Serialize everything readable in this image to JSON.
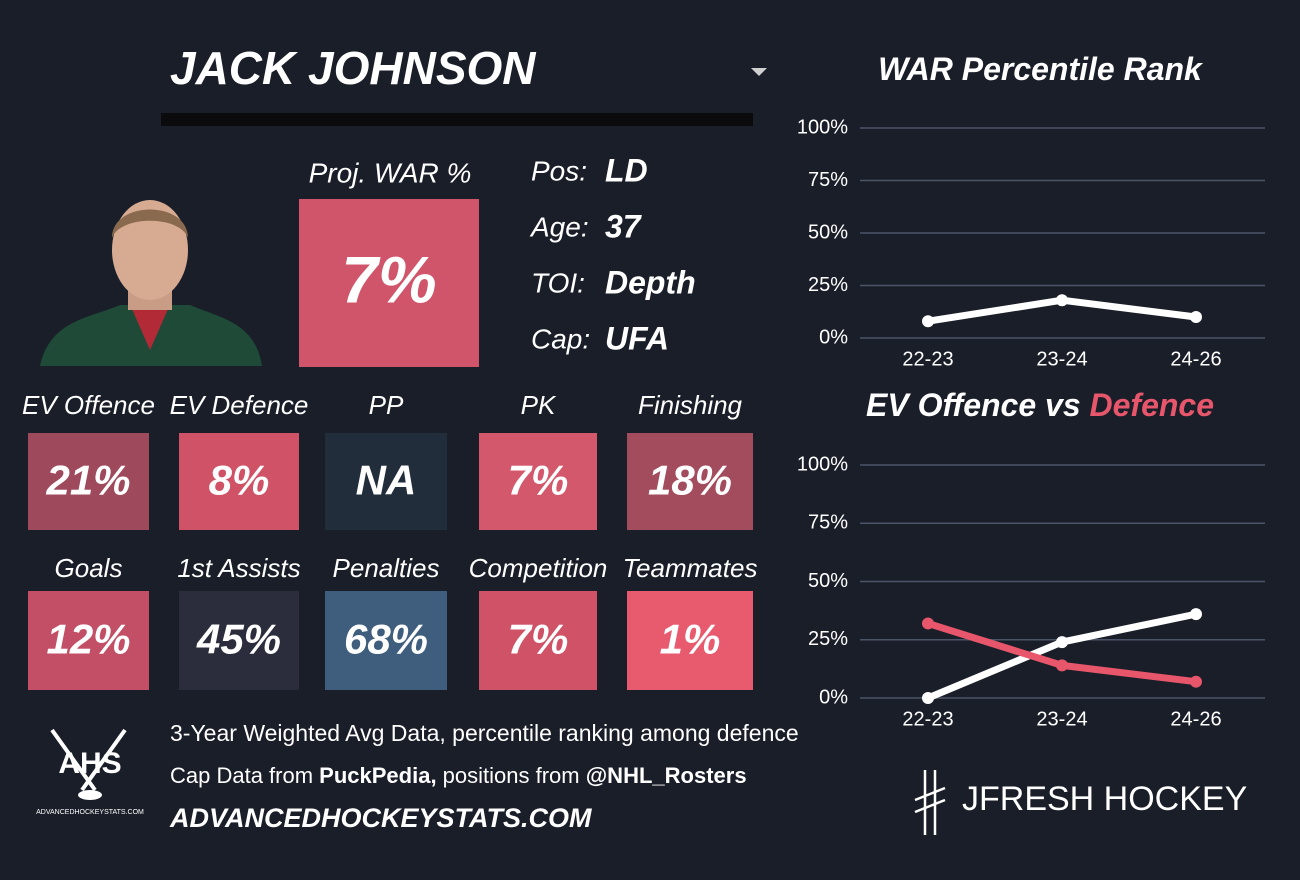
{
  "header": {
    "name": "JACK JOHNSON"
  },
  "projection": {
    "label": "Proj. WAR %",
    "value": "7%",
    "color": "#d0556a"
  },
  "info": [
    {
      "label": "Pos:",
      "value": "LD"
    },
    {
      "label": "Age:",
      "value": "37"
    },
    {
      "label": "TOI:",
      "value": "Depth"
    },
    {
      "label": "Cap:",
      "value": "UFA"
    }
  ],
  "tiles": [
    {
      "label": "EV Offence",
      "value": "21%",
      "color": "#9e4a5c"
    },
    {
      "label": "EV Defence",
      "value": "8%",
      "color": "#cf5267"
    },
    {
      "label": "PP",
      "value": "NA",
      "color": "#222d3b"
    },
    {
      "label": "PK",
      "value": "7%",
      "color": "#d4586b"
    },
    {
      "label": "Finishing",
      "value": "18%",
      "color": "#a24c5e"
    },
    {
      "label": "Goals",
      "value": "12%",
      "color": "#c24f65"
    },
    {
      "label": "1st Assists",
      "value": "45%",
      "color": "#2b2d3c"
    },
    {
      "label": "Penalties",
      "value": "68%",
      "color": "#3f5e7e"
    },
    {
      "label": "Competition",
      "value": "7%",
      "color": "#cf5267"
    },
    {
      "label": "Teammates",
      "value": "1%",
      "color": "#e85a6e"
    }
  ],
  "footer": {
    "note": "3-Year Weighted Avg Data, percentile ranking among defence",
    "source": [
      "Cap Data from ",
      "PuckPedia,",
      " positions from ",
      "@NHL_Rosters"
    ],
    "site": "ADVANCEDHOCKEYSTATS.COM",
    "logo": "AHS",
    "logo_caption": "ADVANCEDHOCKEYSTATS.COM",
    "brand": "JFRESH HOCKEY"
  },
  "chart_data": [
    {
      "type": "line",
      "title": [
        "WAR Percentile Rank"
      ],
      "categories": [
        "22-23",
        "23-24",
        "24-26"
      ],
      "series": [
        {
          "color": "#ffffff",
          "values": [
            8,
            18,
            10
          ]
        }
      ],
      "ylim": [
        0,
        100
      ],
      "yticks": [
        {
          "value": 0,
          "label": "0%"
        },
        {
          "value": 25,
          "label": "25%"
        },
        {
          "value": 50,
          "label": "50%"
        },
        {
          "value": 75,
          "label": "75%"
        },
        {
          "value": 100,
          "label": "100%"
        }
      ],
      "grid": true
    },
    {
      "type": "line",
      "title": [
        "EV Offence vs ",
        "Defence"
      ],
      "categories": [
        "22-23",
        "23-24",
        "24-26"
      ],
      "series": [
        {
          "color": "#ffffff",
          "values": [
            0,
            24,
            36
          ]
        },
        {
          "color": "#e8566b",
          "values": [
            32,
            14,
            7
          ]
        }
      ],
      "ylim": [
        0,
        100
      ],
      "yticks": [
        {
          "value": 0,
          "label": "0%"
        },
        {
          "value": 25,
          "label": "25%"
        },
        {
          "value": 50,
          "label": "50%"
        },
        {
          "value": 75,
          "label": "75%"
        },
        {
          "value": 100,
          "label": "100%"
        }
      ],
      "grid": true
    }
  ]
}
